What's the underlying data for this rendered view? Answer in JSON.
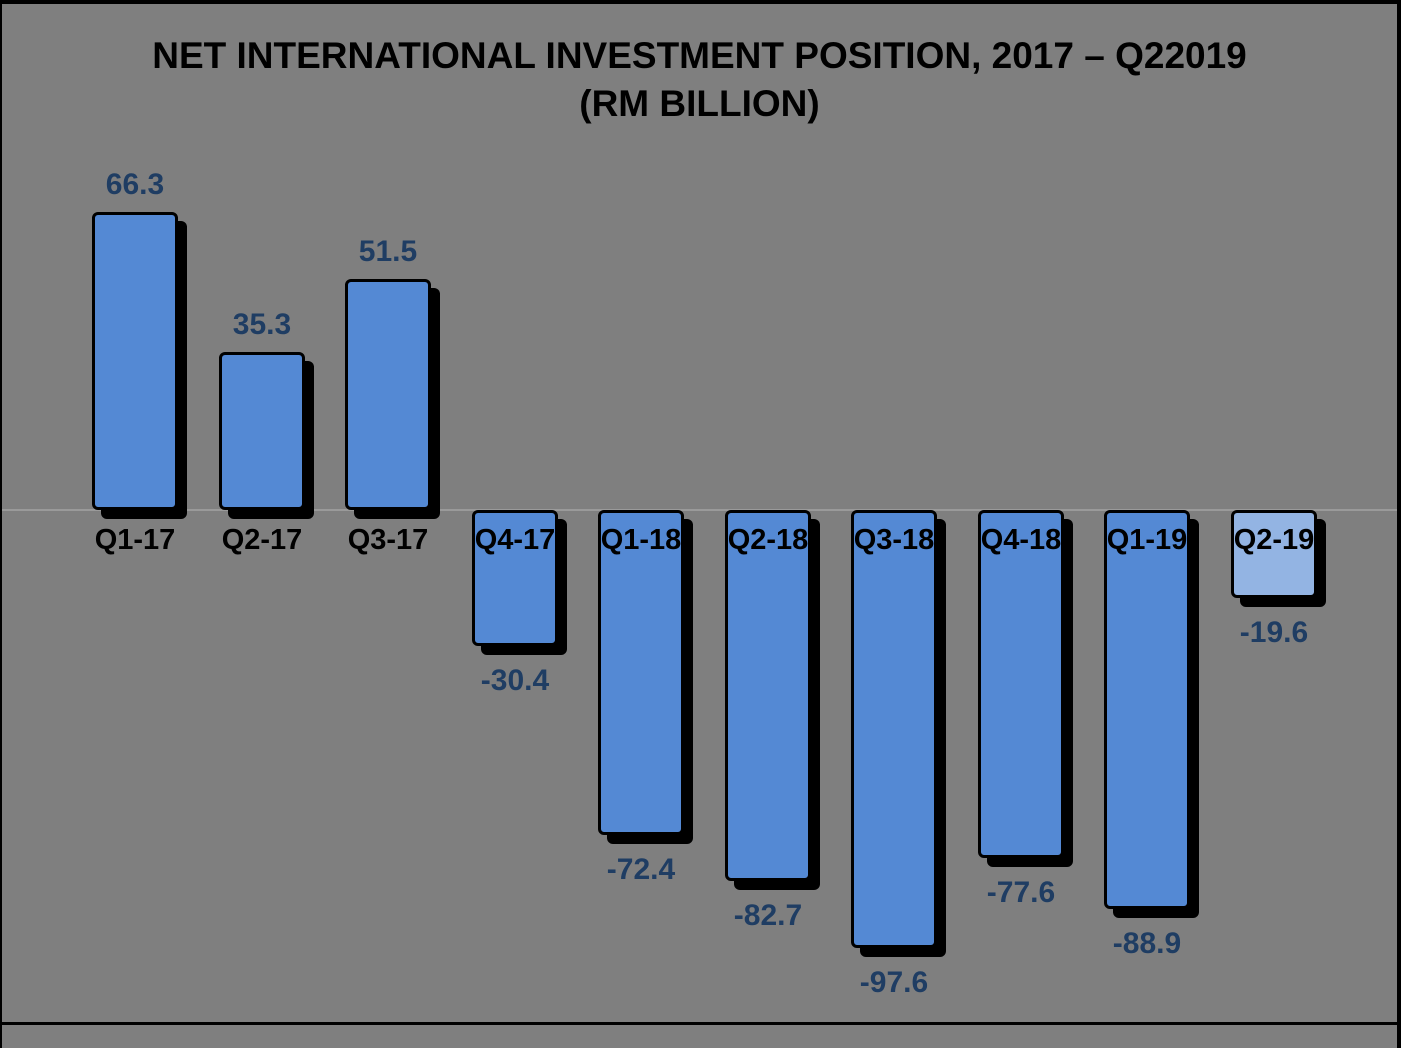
{
  "canvas": {
    "background": "#7F7F7F",
    "frame_border_color": "#000000"
  },
  "chart_data": {
    "type": "bar",
    "title": "NET INTERNATIONAL INVESTMENT POSITION, 2017 – Q22019",
    "subtitle": "(RM BILLION)",
    "categories": [
      "Q1-17",
      "Q2-17",
      "Q3-17",
      "Q4-17",
      "Q1-18",
      "Q2-18",
      "Q3-18",
      "Q4-18",
      "Q1-19",
      "Q2-19"
    ],
    "values": [
      66.3,
      35.3,
      51.5,
      -30.4,
      -72.4,
      -82.7,
      -97.6,
      -77.6,
      -88.9,
      -19.6
    ],
    "data_labels": [
      "66.3",
      "35.3",
      "51.5",
      "-30.4",
      "-72.4",
      "-82.7",
      "-97.6",
      "-77.6",
      "-88.9",
      "-19.6"
    ],
    "xlabel": "",
    "ylabel": "",
    "ylim": [
      -110,
      75
    ],
    "grid": false,
    "legend": false,
    "zero_axis_shown": true,
    "colors": {
      "bar_fill": "#5489D4",
      "last_bar_fill": "#93B4E3",
      "bar_border": "#000000",
      "bar_shadow": "#000000",
      "value_label": "#1F3D63",
      "category_label": "#000000",
      "zero_axis_line": "#9A9A9A",
      "title": "#000000"
    }
  }
}
